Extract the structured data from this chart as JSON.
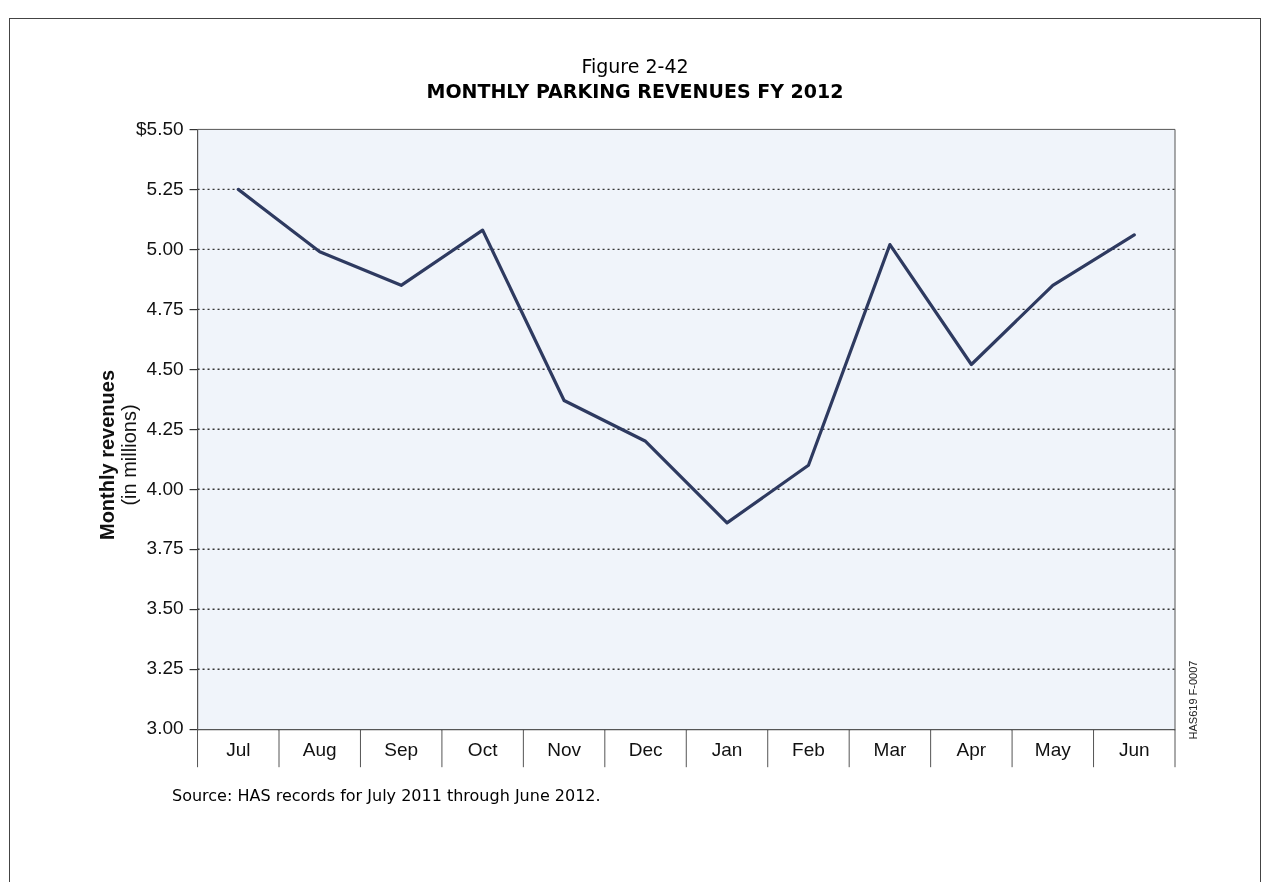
{
  "chart_data": {
    "type": "line",
    "title": "Figure 2-42",
    "subtitle": "MONTHLY PARKING REVENUES FY 2012",
    "ylabel": "Monthly revenues\n(in millions)",
    "categories": [
      "Jul",
      "Aug",
      "Sep",
      "Oct",
      "Nov",
      "Dec",
      "Jan",
      "Feb",
      "Mar",
      "Apr",
      "May",
      "Jun"
    ],
    "series": [
      {
        "color": "#2e3a60",
        "values": [
          5.25,
          4.99,
          4.85,
          5.08,
          4.37,
          4.2,
          3.86,
          4.1,
          5.02,
          4.52,
          4.85,
          5.06
        ]
      }
    ],
    "ylim": [
      3.0,
      5.5
    ],
    "yticks": [
      {
        "value": 3.0,
        "label": "3.00"
      },
      {
        "value": 3.25,
        "label": "3.25"
      },
      {
        "value": 3.5,
        "label": "3.50"
      },
      {
        "value": 3.75,
        "label": "3.75"
      },
      {
        "value": 4.0,
        "label": "4.00"
      },
      {
        "value": 4.25,
        "label": "4.25"
      },
      {
        "value": 4.5,
        "label": "4.50"
      },
      {
        "value": 4.75,
        "label": "4.75"
      },
      {
        "value": 5.0,
        "label": "5.00"
      },
      {
        "value": 5.25,
        "label": "5.25"
      },
      {
        "value": 5.5,
        "label": "$5.50"
      }
    ],
    "grid": "y",
    "legend": false,
    "marker": "none",
    "line_style": "solid",
    "annotations": [
      "HAS619 F-0007",
      "Source:  HAS records for July 2011 through June 2012."
    ]
  }
}
